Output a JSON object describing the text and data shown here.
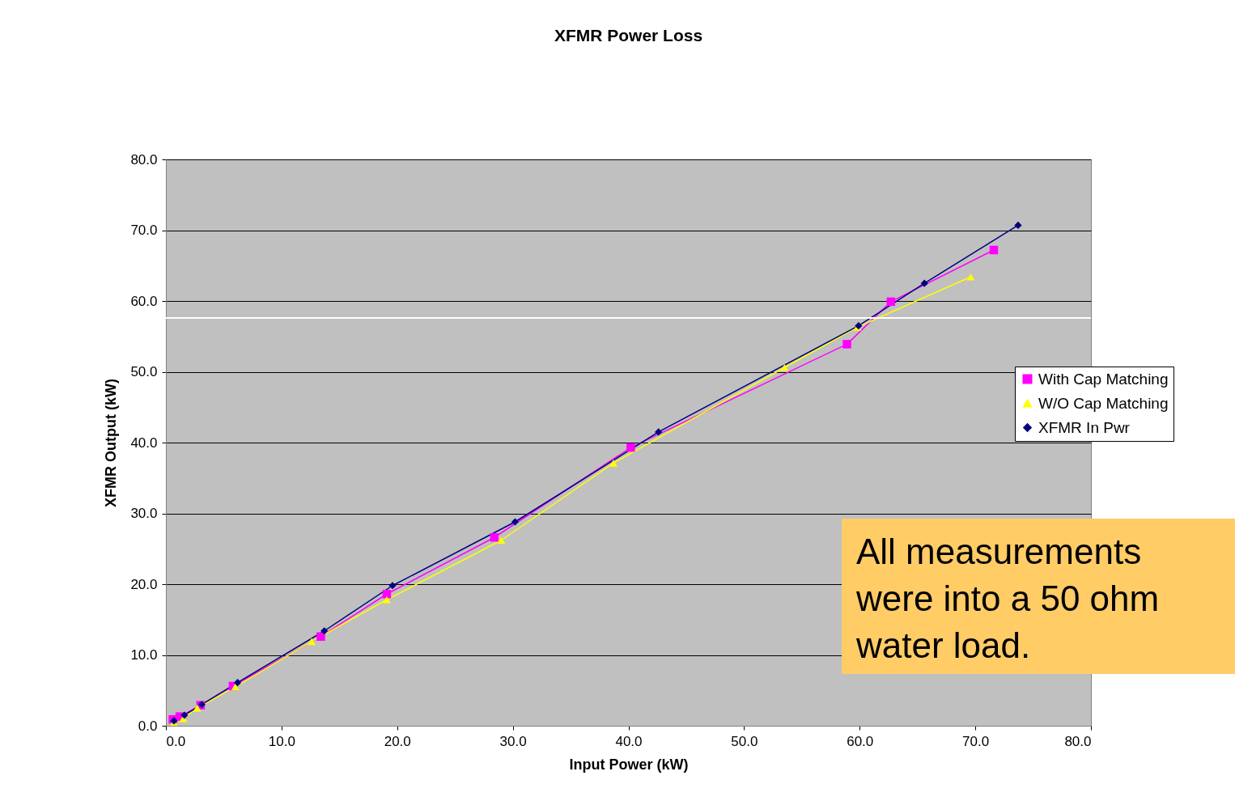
{
  "chart_data": {
    "type": "line",
    "title": "XFMR Power Loss",
    "xlabel": "Input Power (kW)",
    "ylabel": "XFMR Output (kW)",
    "xlim": [
      0,
      80
    ],
    "ylim": [
      0,
      80
    ],
    "xticks": [
      {
        "value": 0,
        "label": "0.0"
      },
      {
        "value": 10,
        "label": "10.0"
      },
      {
        "value": 20,
        "label": "20.0"
      },
      {
        "value": 30,
        "label": "30.0"
      },
      {
        "value": 40,
        "label": "40.0"
      },
      {
        "value": 50,
        "label": "50.0"
      },
      {
        "value": 60,
        "label": "60.0"
      },
      {
        "value": 70,
        "label": "70.0"
      },
      {
        "value": 80,
        "label": "80.0"
      }
    ],
    "yticks": [
      {
        "value": 0,
        "label": "0.0"
      },
      {
        "value": 10,
        "label": "10.0"
      },
      {
        "value": 20,
        "label": "20.0"
      },
      {
        "value": 30,
        "label": "30.0"
      },
      {
        "value": 40,
        "label": "40.0"
      },
      {
        "value": 50,
        "label": "50.0"
      },
      {
        "value": 60,
        "label": "60.0"
      },
      {
        "value": 70,
        "label": "70.0"
      },
      {
        "value": 80,
        "label": "80.0"
      }
    ],
    "grid": "y",
    "legend": "right",
    "line_style": "solid",
    "ref_lines": [
      {
        "axis": "y",
        "value": 57.6,
        "color": "#ffffff"
      }
    ],
    "annotations": [
      "All measurements were into a 50 ohm water load."
    ],
    "series": [
      {
        "name": "With Cap Matching",
        "color": "#ff00ff",
        "marker": "square",
        "x": [
          0.6,
          1.2,
          3.0,
          5.8,
          13.4,
          19.1,
          28.4,
          40.2,
          58.9,
          62.7,
          71.6
        ],
        "values": [
          0.9,
          1.3,
          2.9,
          5.6,
          12.6,
          18.6,
          26.6,
          39.3,
          53.9,
          59.9,
          67.2
        ]
      },
      {
        "name": "W/O Cap Matching",
        "color": "#ffff00",
        "marker": "triangle",
        "x": [
          0.7,
          1.5,
          2.7,
          6.0,
          12.6,
          19.1,
          29.0,
          38.7,
          53.5,
          59.8,
          69.6
        ],
        "values": [
          0.5,
          1.0,
          2.5,
          5.5,
          11.9,
          17.8,
          26.2,
          37.1,
          50.6,
          56.3,
          63.4
        ]
      },
      {
        "name": "XFMR In Pwr",
        "color": "#000080",
        "marker": "diamond",
        "x": [
          0.7,
          1.6,
          3.1,
          6.2,
          13.7,
          19.6,
          30.2,
          42.6,
          59.9,
          65.6,
          73.7
        ],
        "values": [
          0.7,
          1.5,
          3.0,
          6.1,
          13.4,
          19.8,
          28.8,
          41.5,
          56.5,
          62.5,
          70.7
        ]
      }
    ]
  }
}
